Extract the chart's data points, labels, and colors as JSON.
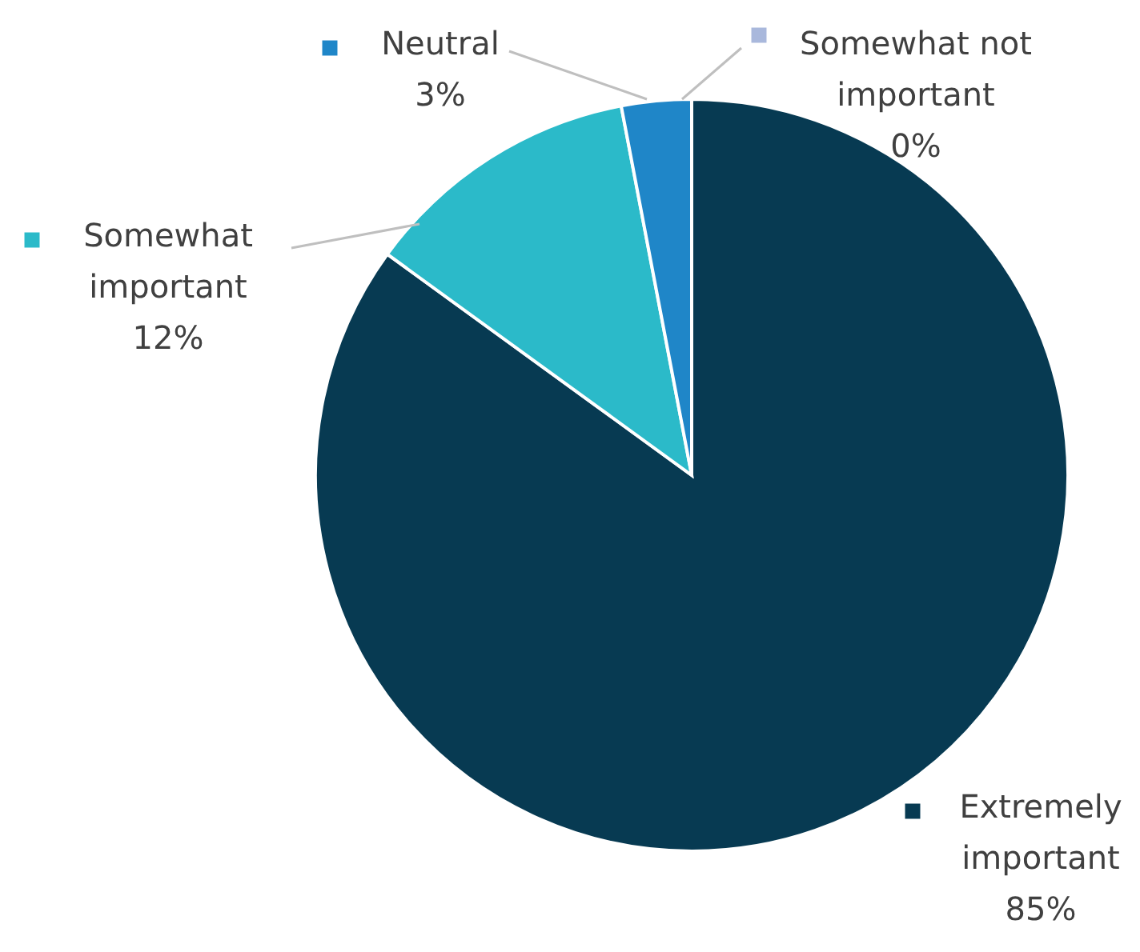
{
  "chart_data": {
    "type": "pie",
    "categories": [
      "Extremely important",
      "Somewhat important",
      "Neutral",
      "Somewhat not important"
    ],
    "values": [
      85,
      12,
      3,
      0
    ],
    "value_labels": [
      "85%",
      "12%",
      "3%",
      "0%"
    ],
    "colors": [
      "#073a52",
      "#2bbac9",
      "#1f86c8",
      "#a9b8dc"
    ],
    "legend": "top left"
  }
}
